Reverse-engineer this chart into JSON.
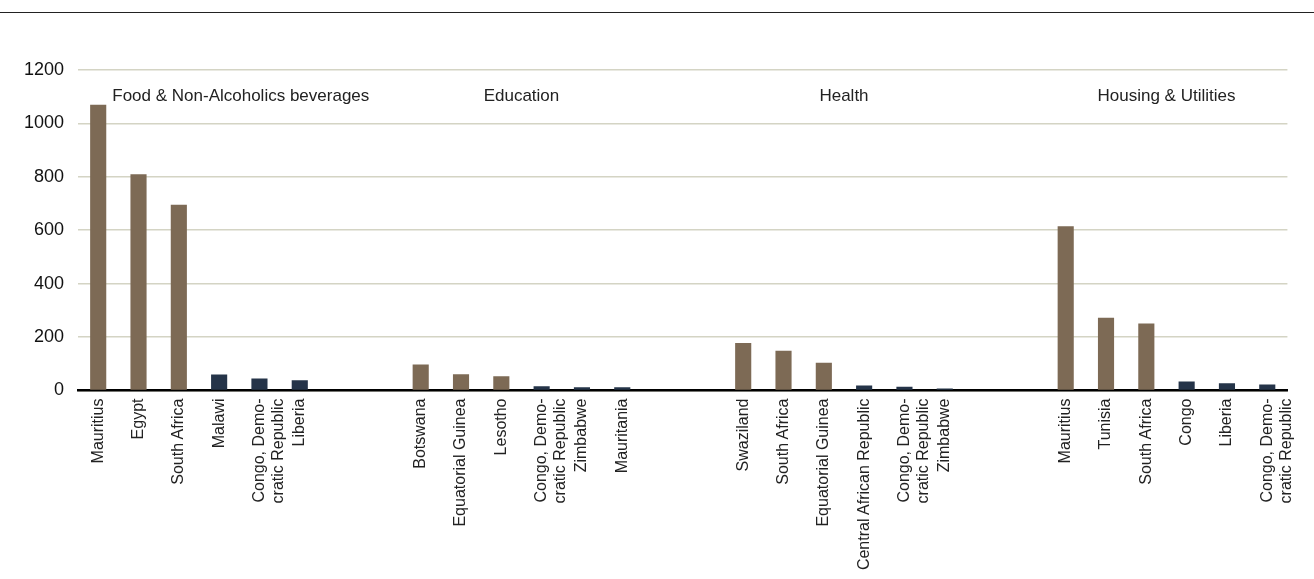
{
  "chart_data": {
    "type": "bar",
    "categories": [
      "Mauritius",
      "Egypt",
      "South Africa",
      "Malawi",
      "Congo, Demo-\ncratic Republic",
      "Liberia",
      null,
      null,
      "Botswana",
      "Equatorial Guinea",
      "Lesotho",
      "Congo, Demo-\ncratic Republic",
      "Zimbabwe",
      "Mauritania",
      null,
      null,
      "Swaziland",
      "South Africa",
      "Equatorial Guinea",
      "Central African Republic",
      "Congo, Demo-\ncratic Republic",
      "Zimbabwe",
      null,
      null,
      "Mauritius",
      "Tunisia",
      "South Africa",
      "Congo",
      "Liberia",
      "Congo, Demo-\ncratic Republic"
    ],
    "values": [
      1070,
      810,
      695,
      60,
      45,
      38,
      null,
      null,
      97,
      61,
      53,
      16,
      12,
      12,
      null,
      null,
      178,
      149,
      104,
      19,
      14,
      7,
      null,
      null,
      615,
      272,
      251,
      34,
      27,
      22
    ],
    "colors": [
      "#7d6a55",
      "#7d6a55",
      "#7d6a55",
      "#253449",
      "#253449",
      "#253449",
      null,
      null,
      "#7d6a55",
      "#7d6a55",
      "#7d6a55",
      "#253449",
      "#253449",
      "#253449",
      null,
      null,
      "#7d6a55",
      "#7d6a55",
      "#7d6a55",
      "#253449",
      "#253449",
      "#253449",
      null,
      null,
      "#7d6a55",
      "#7d6a55",
      "#7d6a55",
      "#253449",
      "#253449",
      "#253449"
    ],
    "annotations": [
      "Food & Non-Alcoholics beverages",
      "Education",
      "Health",
      "Housing & Utilities"
    ],
    "ylim": [
      0,
      1200
    ],
    "yticks": [
      0,
      200,
      400,
      600,
      800,
      1000,
      1200
    ],
    "grid": "y",
    "legend": false
  }
}
